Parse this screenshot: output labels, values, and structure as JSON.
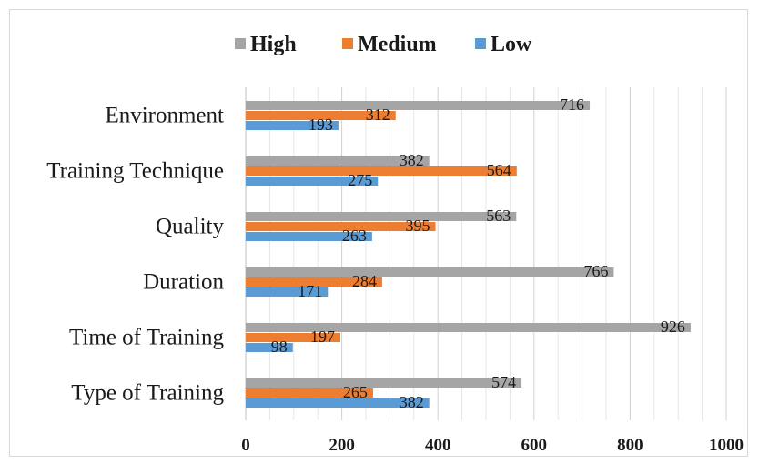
{
  "chart_data": {
    "type": "bar",
    "orientation": "horizontal",
    "categories": [
      "Type of Training",
      "Time of Training",
      "Duration",
      "Quality",
      "Training Technique",
      "Environment"
    ],
    "series": [
      {
        "name": "High",
        "color": "#a5a5a5",
        "values": [
          574,
          926,
          766,
          563,
          382,
          716
        ]
      },
      {
        "name": "Medium",
        "color": "#ed7d31",
        "values": [
          265,
          197,
          284,
          395,
          564,
          312
        ]
      },
      {
        "name": "Low",
        "color": "#5b9bd5",
        "values": [
          382,
          98,
          171,
          263,
          275,
          193
        ]
      }
    ],
    "xlim": [
      0,
      1000
    ],
    "xticks": [
      0,
      200,
      400,
      600,
      800,
      1000
    ],
    "legend_position": "top",
    "grid": "vertical",
    "data_labels": true
  }
}
